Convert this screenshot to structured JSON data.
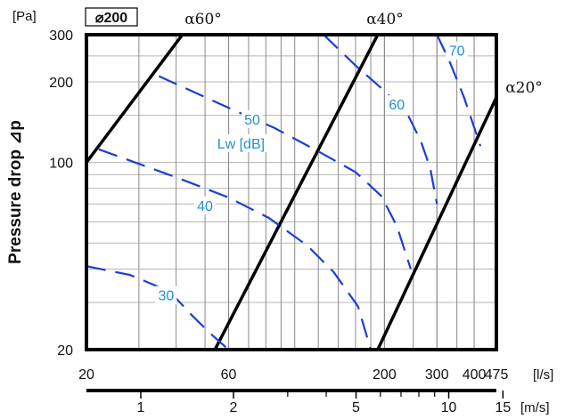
{
  "chart_data": {
    "type": "line",
    "title": "⌀200",
    "ylabel": "Pressure drop ⊿p",
    "yunit": "[Pa]",
    "xunit": "[l/s]",
    "x2unit": "[m/s]",
    "xscale": "log",
    "yscale": "log",
    "xlim": [
      20,
      475
    ],
    "ylim": [
      20,
      300
    ],
    "x_ticks": [
      {
        "label": "20",
        "value": 20
      },
      {
        "label": "60",
        "value": 60
      },
      {
        "label": "200",
        "value": 200
      },
      {
        "label": "300",
        "value": 300
      },
      {
        "label": "400",
        "value": 400
      },
      {
        "label": "475",
        "value": 475
      }
    ],
    "y_ticks": [
      {
        "label": "20",
        "value": 20
      },
      {
        "label": "100",
        "value": 100
      },
      {
        "label": "200",
        "value": 200
      },
      {
        "label": "300",
        "value": 300
      }
    ],
    "velocity_ticks": [
      {
        "label": "1",
        "value": 1
      },
      {
        "label": "2",
        "value": 2
      },
      {
        "label": "5",
        "value": 5
      },
      {
        "label": "10",
        "value": 10
      },
      {
        "label": "15",
        "value": 15
      }
    ],
    "velocity_minor": [
      3,
      4,
      6,
      7,
      8,
      9
    ],
    "v_grid": [
      30,
      40,
      50,
      60,
      70,
      80,
      90,
      100,
      120,
      140,
      160,
      180,
      200,
      250,
      300,
      350,
      400
    ],
    "h_grid": [
      30,
      40,
      50,
      60,
      70,
      80,
      90,
      150,
      250
    ],
    "series": [
      {
        "name": "α60°",
        "kind": "damper",
        "points": [
          [
            20,
            100
          ],
          [
            42,
            300
          ]
        ]
      },
      {
        "name": "α40°",
        "kind": "damper",
        "points": [
          [
            54,
            20
          ],
          [
            190,
            300
          ]
        ]
      },
      {
        "name": "α20°",
        "kind": "damper",
        "points": [
          [
            190,
            20
          ],
          [
            475,
            175
          ]
        ]
      },
      {
        "name": "30",
        "kind": "Lw",
        "points": [
          [
            20,
            41
          ],
          [
            28,
            38
          ],
          [
            38,
            33
          ],
          [
            45,
            27
          ],
          [
            52,
            23
          ],
          [
            60,
            20
          ]
        ]
      },
      {
        "name": "40",
        "kind": "Lw",
        "points": [
          [
            22,
            112
          ],
          [
            40,
            88
          ],
          [
            60,
            74
          ],
          [
            82,
            62
          ],
          [
            110,
            49
          ],
          [
            135,
            39
          ],
          [
            163,
            29
          ],
          [
            180,
            20
          ]
        ]
      },
      {
        "name": "50",
        "kind": "Lw",
        "points": [
          [
            35,
            210
          ],
          [
            60,
            160
          ],
          [
            85,
            135
          ],
          [
            120,
            110
          ],
          [
            160,
            92
          ],
          [
            195,
            75
          ],
          [
            220,
            58
          ],
          [
            245,
            40
          ]
        ]
      },
      {
        "name": "60",
        "kind": "Lw",
        "points": [
          [
            125,
            300
          ],
          [
            160,
            230
          ],
          [
            200,
            185
          ],
          [
            240,
            150
          ],
          [
            265,
            120
          ],
          [
            285,
            95
          ],
          [
            300,
            70
          ]
        ]
      },
      {
        "name": "70",
        "kind": "Lw",
        "points": [
          [
            300,
            300
          ],
          [
            330,
            240
          ],
          [
            370,
            175
          ],
          [
            405,
            130
          ],
          [
            420,
            115
          ]
        ]
      }
    ],
    "annotations": [
      {
        "text": "30",
        "series": "30",
        "at": [
          37,
          32
        ]
      },
      {
        "text": "40",
        "series": "40",
        "at": [
          50,
          69
        ]
      },
      {
        "text": "50",
        "series": "50",
        "at": [
          72,
          145
        ]
      },
      {
        "text": "60",
        "series": "60",
        "at": [
          220,
          165
        ]
      },
      {
        "text": "70",
        "series": "70",
        "at": [
          350,
          262
        ]
      },
      {
        "text": "Lw [dB]",
        "at": [
          66,
          118
        ]
      }
    ],
    "grid": true,
    "colors": {
      "damper": "#000000",
      "Lw": "#1a3fd6",
      "label": "#1f8fd6",
      "grid": "#b5b5b5"
    }
  }
}
